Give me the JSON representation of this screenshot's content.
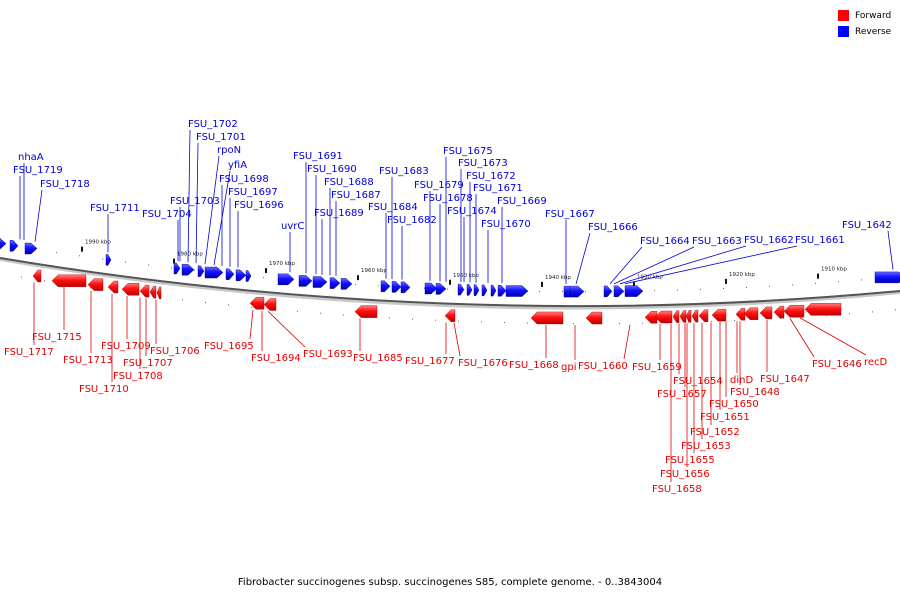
{
  "legend": {
    "forward_label": "Forward",
    "reverse_label": "Reverse",
    "forward_color": "#ff0000",
    "reverse_color": "#0000ff"
  },
  "caption": "Fibrobacter succinogenes subsp. succinogenes S85, complete genome. - 0..3843004",
  "ticks": [
    "1990 kbp",
    "1980 kbp",
    "1970 kbp",
    "1960 kbp",
    "1950 kbp",
    "1940 kbp",
    "1930 kbp",
    "1920 kbp",
    "1910 kbp"
  ],
  "reverse_labels": [
    "nhaA",
    "FSU_1719",
    "FSU_1718",
    "FSU_1711",
    "FSU_1702",
    "FSU_1701",
    "rpoN",
    "yfiA",
    "FSU_1698",
    "FSU_1703",
    "FSU_1697",
    "FSU_1704",
    "FSU_1696",
    "FSU_1691",
    "FSU_1690",
    "FSU_1688",
    "FSU_1687",
    "uvrC",
    "FSU_1689",
    "FSU_1683",
    "FSU_1684",
    "FSU_1682",
    "FSU_1675",
    "FSU_1673",
    "FSU_1672",
    "FSU_1671",
    "FSU_1679",
    "FSU_1678",
    "FSU_1674",
    "FSU_1669",
    "FSU_1670",
    "FSU_1667",
    "FSU_1666",
    "FSU_1664",
    "FSU_1663",
    "FSU_1662",
    "FSU_1661",
    "FSU_1642"
  ],
  "forward_labels": [
    "FSU_1717",
    "FSU_1715",
    "FSU_1713",
    "FSU_1710",
    "FSU_1709",
    "FSU_1708",
    "FSU_1707",
    "FSU_1706",
    "FSU_1695",
    "FSU_1694",
    "FSU_1693",
    "FSU_1685",
    "FSU_1677",
    "FSU_1676",
    "FSU_1668",
    "gpi",
    "FSU_1660",
    "FSU_1659",
    "FSU_1654",
    "FSU_1657",
    "dinD",
    "FSU_1648",
    "FSU_1647",
    "FSU_1650",
    "FSU_1651",
    "FSU_1652",
    "FSU_1653",
    "FSU_1655",
    "FSU_1656",
    "FSU_1658",
    "FSU_1646",
    "recD"
  ]
}
